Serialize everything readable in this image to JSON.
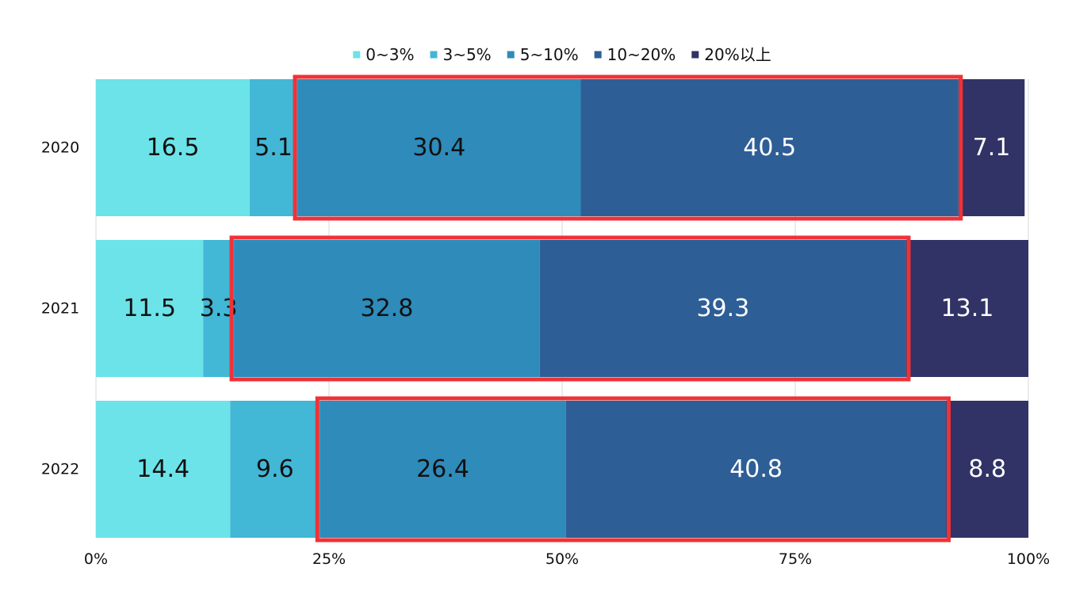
{
  "chart_data": {
    "type": "bar",
    "orientation": "horizontal",
    "stacked": "percent",
    "categories": [
      "2020",
      "2021",
      "2022"
    ],
    "series": [
      {
        "name": "0~3%",
        "color": "#6ce3e8",
        "label_color": "#111111",
        "values": [
          16.5,
          11.5,
          14.4
        ]
      },
      {
        "name": "3~5%",
        "color": "#42b7d6",
        "label_color": "#111111",
        "values": [
          5.1,
          3.3,
          9.6
        ]
      },
      {
        "name": "5~10%",
        "color": "#2e8bba",
        "label_color": "#111111",
        "values": [
          30.4,
          32.8,
          26.4
        ]
      },
      {
        "name": "10~20%",
        "color": "#2e5e96",
        "label_color": "#ffffff",
        "values": [
          40.5,
          39.3,
          40.8
        ]
      },
      {
        "name": "20%以上",
        "color": "#313366",
        "label_color": "#ffffff",
        "values": [
          7.1,
          13.1,
          8.8
        ]
      }
    ],
    "x_ticks": [
      "0%",
      "25%",
      "50%",
      "75%",
      "100%"
    ],
    "xlim": [
      0,
      100
    ],
    "grid": true,
    "legend_position": "top",
    "highlight": {
      "color": "#ef3237",
      "series": [
        "5~10%",
        "10~20%"
      ],
      "categories": [
        "2020",
        "2021",
        "2022"
      ]
    }
  }
}
